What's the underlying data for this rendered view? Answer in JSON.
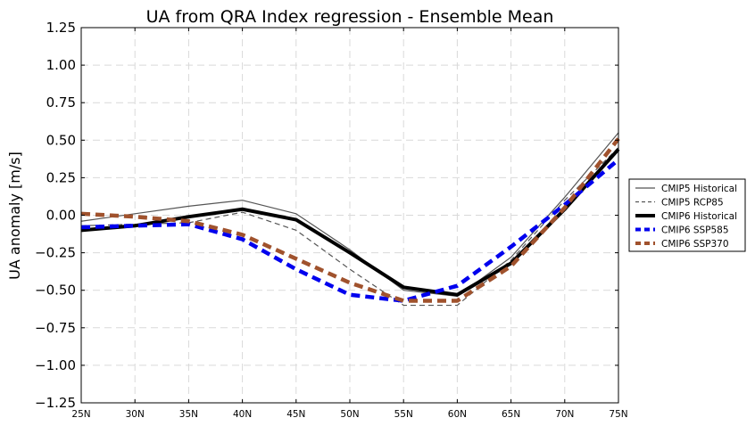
{
  "chart_data": {
    "type": "line",
    "title": "UA from QRA Index regression - Ensemble Mean",
    "xlabel": "",
    "ylabel": "UA anomaly [m/s]",
    "x": [
      25,
      30,
      35,
      40,
      45,
      50,
      55,
      60,
      65,
      70,
      75
    ],
    "x_tick_labels": [
      "25N",
      "30N",
      "35N",
      "40N",
      "45N",
      "50N",
      "55N",
      "60N",
      "65N",
      "70N",
      "75N"
    ],
    "xlim": [
      25,
      75
    ],
    "ylim": [
      -1.25,
      1.25
    ],
    "y_ticks": [
      -1.25,
      -1.0,
      -0.75,
      -0.5,
      -0.25,
      0.0,
      0.25,
      0.5,
      0.75,
      1.0,
      1.25
    ],
    "y_tick_labels": [
      "−1.25",
      "−1.00",
      "−0.75",
      "−0.50",
      "−0.25",
      "0.00",
      "0.25",
      "0.50",
      "0.75",
      "1.00",
      "1.25"
    ],
    "grid": true,
    "legend_position": "right-outside",
    "series": [
      {
        "name": "CMIP5 Historical",
        "color": "#555555",
        "style": "solid-thin",
        "values": [
          -0.04,
          0.01,
          0.06,
          0.1,
          0.01,
          -0.23,
          -0.5,
          -0.54,
          -0.28,
          0.12,
          0.55
        ]
      },
      {
        "name": "CMIP5 RCP85",
        "color": "#555555",
        "style": "dashed-thin",
        "values": [
          -0.07,
          -0.06,
          -0.05,
          0.02,
          -0.1,
          -0.36,
          -0.6,
          -0.6,
          -0.3,
          0.1,
          0.45
        ]
      },
      {
        "name": "CMIP6 Historical",
        "color": "#000000",
        "style": "solid-thick",
        "values": [
          -0.1,
          -0.07,
          -0.01,
          0.04,
          -0.03,
          -0.25,
          -0.48,
          -0.53,
          -0.32,
          0.04,
          0.44
        ]
      },
      {
        "name": "CMIP6 SSP585",
        "color": "#0000ee",
        "style": "dashed-thick",
        "values": [
          -0.08,
          -0.07,
          -0.06,
          -0.16,
          -0.36,
          -0.53,
          -0.57,
          -0.47,
          -0.21,
          0.07,
          0.37
        ]
      },
      {
        "name": "CMIP6 SSP370",
        "color": "#a0522d",
        "style": "dashed-thick",
        "values": [
          0.01,
          -0.01,
          -0.04,
          -0.13,
          -0.29,
          -0.45,
          -0.57,
          -0.57,
          -0.34,
          0.05,
          0.51
        ]
      }
    ]
  }
}
